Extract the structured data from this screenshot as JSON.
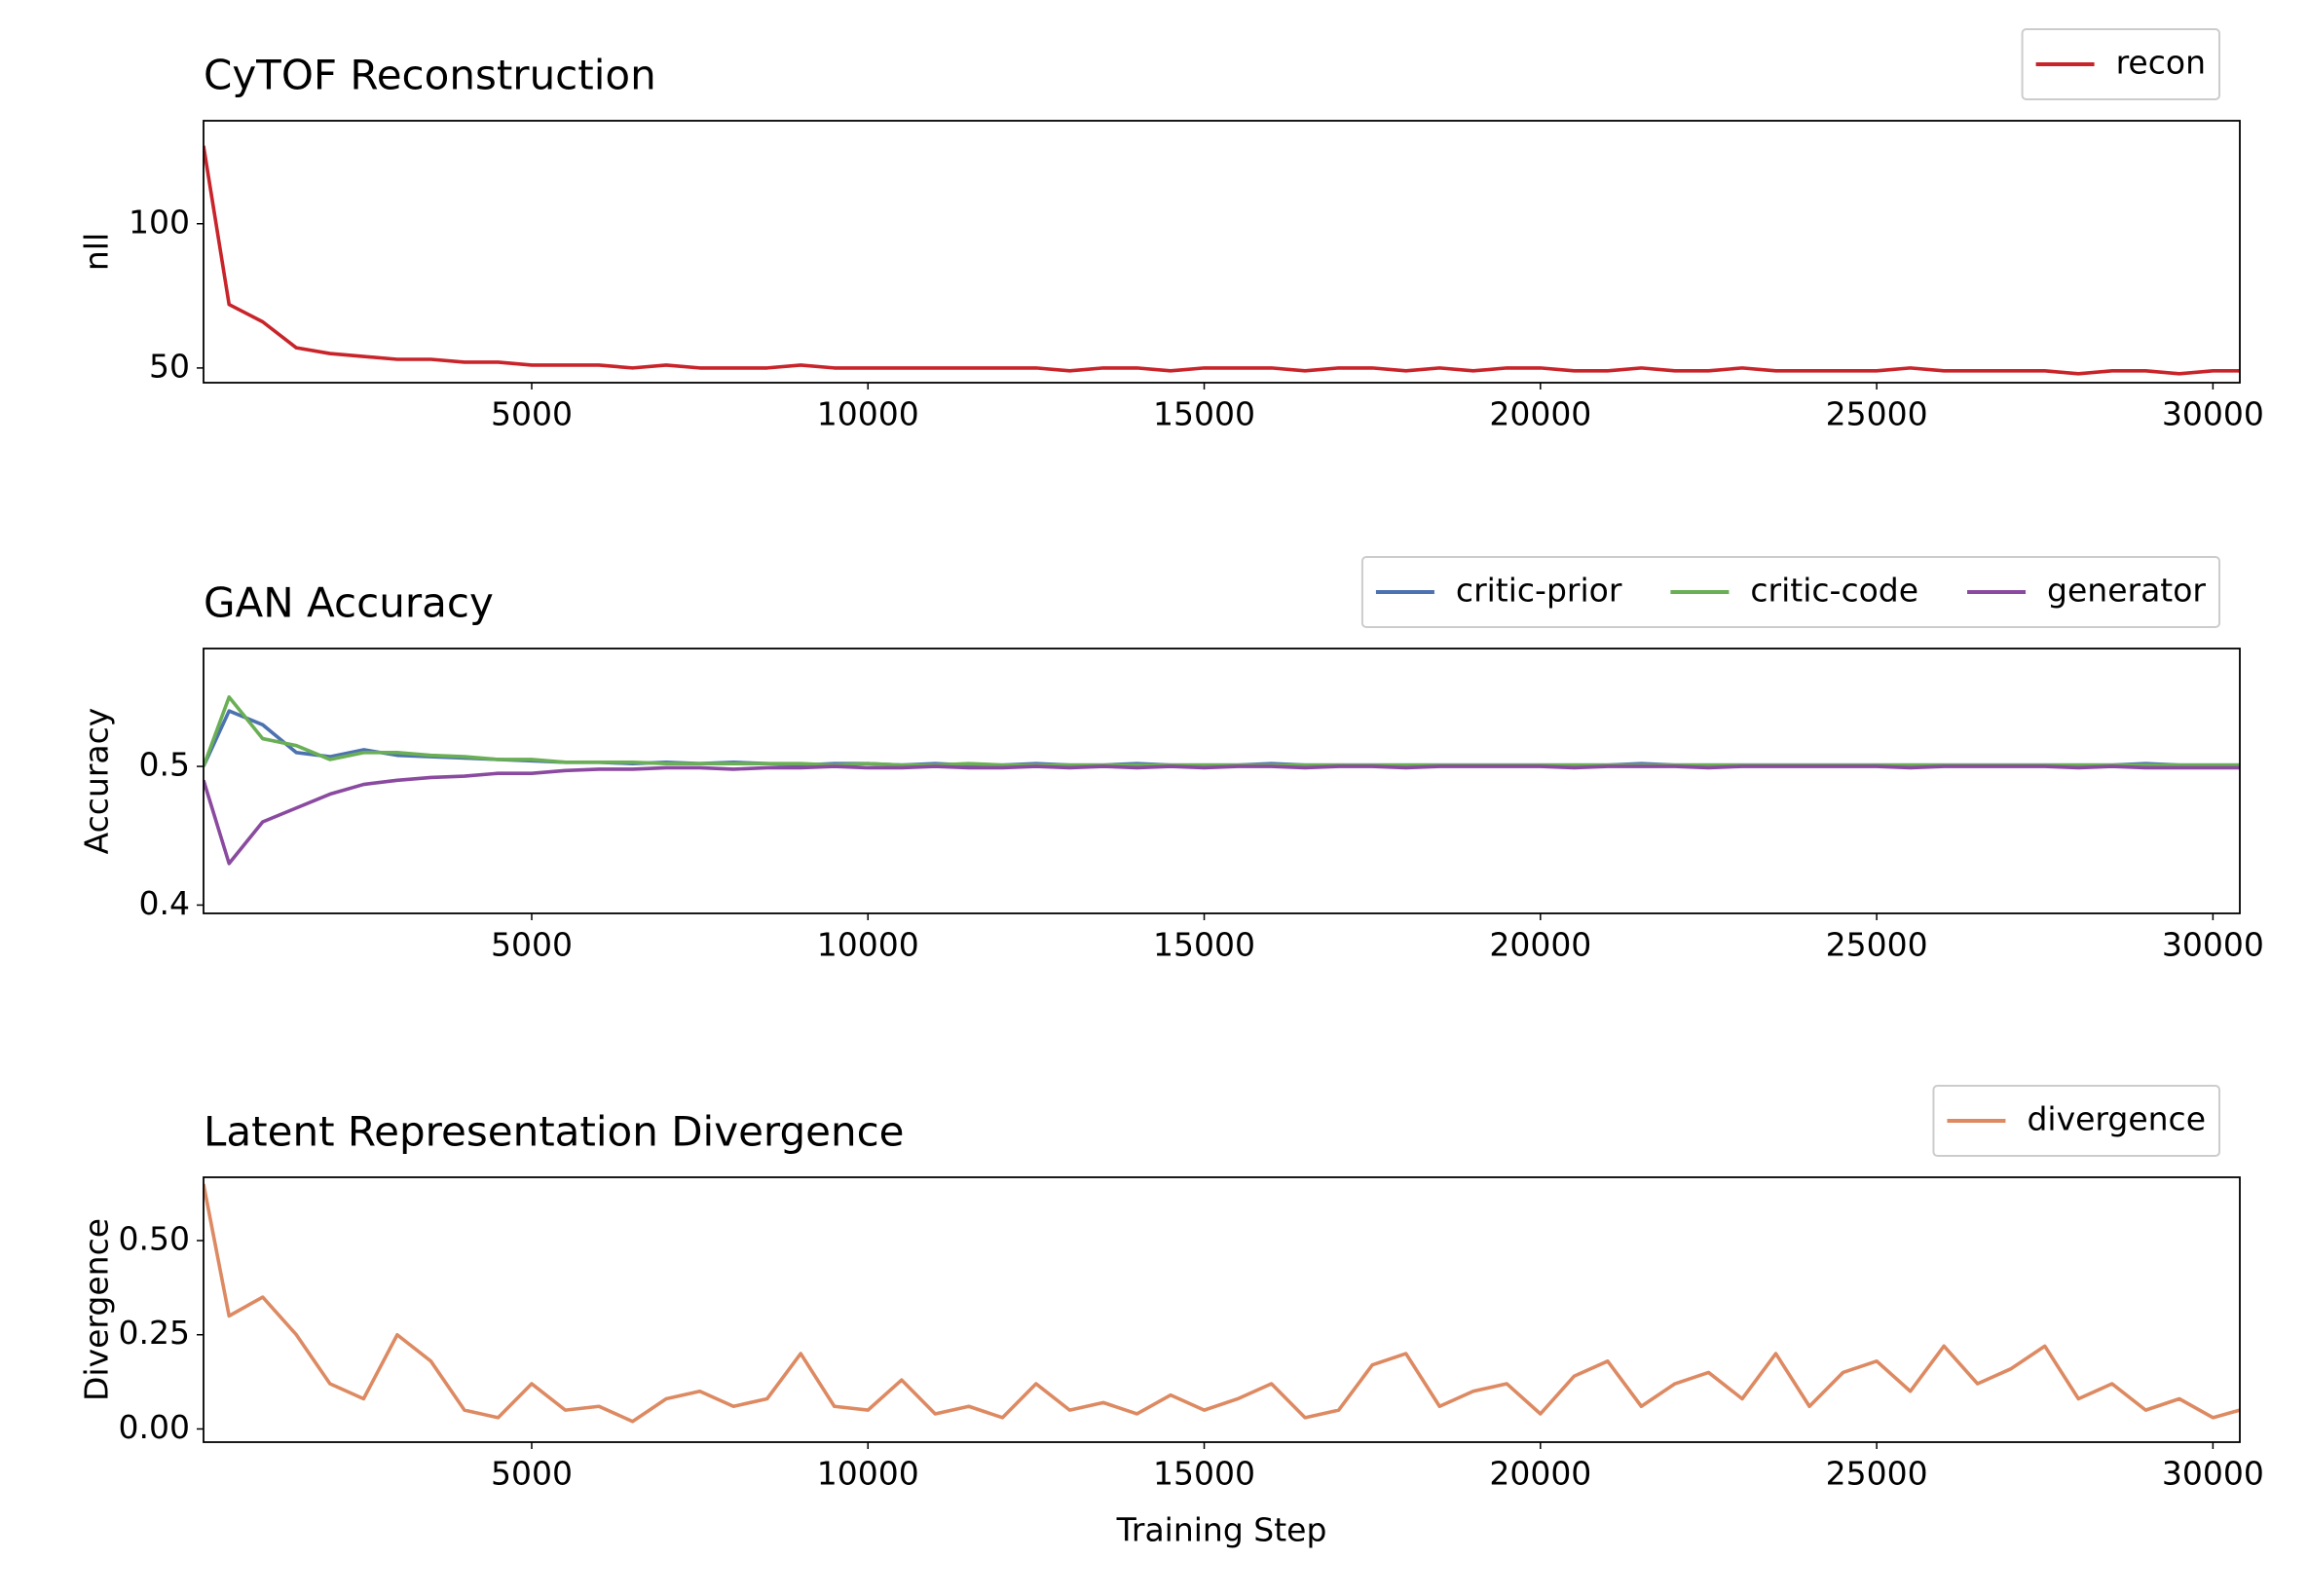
{
  "chart_data": [
    {
      "type": "line",
      "title": "CyTOF Reconstruction",
      "ylabel": "nll",
      "legend": "upper right",
      "grid": false,
      "x": [
        120,
        500,
        1000,
        1500,
        2000,
        2500,
        3000,
        3500,
        4000,
        4500,
        5000,
        5500,
        6000,
        6500,
        7000,
        7500,
        8000,
        8500,
        9000,
        9500,
        10000,
        10500,
        11000,
        11500,
        12000,
        12500,
        13000,
        13500,
        14000,
        14500,
        15000,
        15500,
        16000,
        16500,
        17000,
        17500,
        18000,
        18500,
        19000,
        19500,
        20000,
        20500,
        21000,
        21500,
        22000,
        22500,
        23000,
        23500,
        24000,
        24500,
        25000,
        25500,
        26000,
        26500,
        27000,
        27500,
        28000,
        28500,
        29000,
        29500,
        30000,
        30400
      ],
      "series": [
        {
          "name": "recon",
          "color": "#c8242a",
          "values": [
            127,
            72,
            66,
            57,
            55,
            54,
            53,
            53,
            52,
            52,
            51,
            51,
            51,
            50,
            51,
            50,
            50,
            50,
            51,
            50,
            50,
            50,
            50,
            50,
            50,
            50,
            49,
            50,
            50,
            49,
            50,
            50,
            50,
            49,
            50,
            50,
            49,
            50,
            49,
            50,
            50,
            49,
            49,
            50,
            49,
            49,
            50,
            49,
            49,
            49,
            49,
            50,
            49,
            49,
            49,
            49,
            48,
            49,
            49,
            48,
            49,
            49
          ]
        }
      ],
      "xlim": [
        120,
        30400
      ],
      "xticks": [
        5000,
        10000,
        15000,
        20000,
        25000,
        30000
      ],
      "ylim": [
        44.9,
        135.7
      ],
      "yticks": [
        50,
        100
      ]
    },
    {
      "type": "line",
      "title": "GAN Accuracy",
      "ylabel": "Accuracy",
      "legend": "upper right",
      "grid": false,
      "x": [
        120,
        500,
        1000,
        1500,
        2000,
        2500,
        3000,
        3500,
        4000,
        4500,
        5000,
        5500,
        6000,
        6500,
        7000,
        7500,
        8000,
        8500,
        9000,
        9500,
        10000,
        10500,
        11000,
        11500,
        12000,
        12500,
        13000,
        13500,
        14000,
        14500,
        15000,
        15500,
        16000,
        16500,
        17000,
        17500,
        18000,
        18500,
        19000,
        19500,
        20000,
        20500,
        21000,
        21500,
        22000,
        22500,
        23000,
        23500,
        24000,
        24500,
        25000,
        25500,
        26000,
        26500,
        27000,
        27500,
        28000,
        28500,
        29000,
        29500,
        30000,
        30400
      ],
      "series": [
        {
          "name": "critic-prior",
          "color": "#4c72b0",
          "values": [
            0.5,
            0.54,
            0.53,
            0.51,
            0.507,
            0.512,
            0.508,
            0.507,
            0.506,
            0.505,
            0.504,
            0.503,
            0.503,
            0.502,
            0.503,
            0.502,
            0.503,
            0.502,
            0.501,
            0.502,
            0.502,
            0.501,
            0.502,
            0.501,
            0.501,
            0.502,
            0.501,
            0.501,
            0.502,
            0.501,
            0.501,
            0.501,
            0.502,
            0.501,
            0.501,
            0.501,
            0.501,
            0.501,
            0.501,
            0.501,
            0.501,
            0.501,
            0.501,
            0.502,
            0.501,
            0.501,
            0.501,
            0.501,
            0.501,
            0.501,
            0.501,
            0.501,
            0.501,
            0.501,
            0.501,
            0.501,
            0.501,
            0.501,
            0.502,
            0.501,
            0.501,
            0.501
          ]
        },
        {
          "name": "critic-code",
          "color": "#6aaf55",
          "values": [
            0.5,
            0.55,
            0.52,
            0.515,
            0.505,
            0.51,
            0.51,
            0.508,
            0.507,
            0.505,
            0.505,
            0.503,
            0.503,
            0.503,
            0.502,
            0.502,
            0.502,
            0.502,
            0.502,
            0.501,
            0.502,
            0.501,
            0.501,
            0.502,
            0.501,
            0.501,
            0.501,
            0.501,
            0.501,
            0.501,
            0.501,
            0.501,
            0.501,
            0.501,
            0.501,
            0.501,
            0.501,
            0.501,
            0.501,
            0.501,
            0.501,
            0.501,
            0.501,
            0.501,
            0.501,
            0.501,
            0.501,
            0.501,
            0.501,
            0.501,
            0.501,
            0.501,
            0.501,
            0.501,
            0.501,
            0.501,
            0.501,
            0.501,
            0.501,
            0.501,
            0.501,
            0.501
          ]
        },
        {
          "name": "generator",
          "color": "#8a4a9f",
          "values": [
            0.49,
            0.43,
            0.46,
            0.47,
            0.48,
            0.487,
            0.49,
            0.492,
            0.493,
            0.495,
            0.495,
            0.497,
            0.498,
            0.498,
            0.499,
            0.499,
            0.498,
            0.499,
            0.499,
            0.5,
            0.499,
            0.499,
            0.5,
            0.499,
            0.499,
            0.5,
            0.499,
            0.5,
            0.499,
            0.5,
            0.499,
            0.5,
            0.5,
            0.499,
            0.5,
            0.5,
            0.499,
            0.5,
            0.5,
            0.5,
            0.5,
            0.499,
            0.5,
            0.5,
            0.5,
            0.499,
            0.5,
            0.5,
            0.5,
            0.5,
            0.5,
            0.499,
            0.5,
            0.5,
            0.5,
            0.5,
            0.499,
            0.5,
            0.499,
            0.499,
            0.499,
            0.499
          ]
        }
      ],
      "xlim": [
        120,
        30400
      ],
      "xticks": [
        5000,
        10000,
        15000,
        20000,
        25000,
        30000
      ],
      "ylim": [
        0.394,
        0.585
      ],
      "yticks": [
        0.4,
        0.5
      ]
    },
    {
      "type": "line",
      "title": "Latent Representation Divergence",
      "ylabel": "Divergence",
      "xlabel": "Training Step",
      "legend": "upper right",
      "grid": false,
      "x": [
        120,
        500,
        1000,
        1500,
        2000,
        2500,
        3000,
        3500,
        4000,
        4500,
        5000,
        5500,
        6000,
        6500,
        7000,
        7500,
        8000,
        8500,
        9000,
        9500,
        10000,
        10500,
        11000,
        11500,
        12000,
        12500,
        13000,
        13500,
        14000,
        14500,
        15000,
        15500,
        16000,
        16500,
        17000,
        17500,
        18000,
        18500,
        19000,
        19500,
        20000,
        20500,
        21000,
        21500,
        22000,
        22500,
        23000,
        23500,
        24000,
        24500,
        25000,
        25500,
        26000,
        26500,
        27000,
        27500,
        28000,
        28500,
        29000,
        29500,
        30000,
        30400
      ],
      "series": [
        {
          "name": "divergence",
          "color": "#dd8a62",
          "values": [
            0.65,
            0.3,
            0.35,
            0.25,
            0.12,
            0.08,
            0.25,
            0.18,
            0.05,
            0.03,
            0.12,
            0.05,
            0.06,
            0.02,
            0.08,
            0.1,
            0.06,
            0.08,
            0.2,
            0.06,
            0.05,
            0.13,
            0.04,
            0.06,
            0.03,
            0.12,
            0.05,
            0.07,
            0.04,
            0.09,
            0.05,
            0.08,
            0.12,
            0.03,
            0.05,
            0.17,
            0.2,
            0.06,
            0.1,
            0.12,
            0.04,
            0.14,
            0.18,
            0.06,
            0.12,
            0.15,
            0.08,
            0.2,
            0.06,
            0.15,
            0.18,
            0.1,
            0.22,
            0.12,
            0.16,
            0.22,
            0.08,
            0.12,
            0.05,
            0.08,
            0.03,
            0.05
          ]
        }
      ],
      "xlim": [
        120,
        30400
      ],
      "xticks": [
        5000,
        10000,
        15000,
        20000,
        25000,
        30000
      ],
      "ylim": [
        -0.035,
        0.668
      ],
      "yticks": [
        {
          "value": 0,
          "label": "0.00"
        },
        {
          "value": 0.25,
          "label": "0.25"
        },
        {
          "value": 0.5,
          "label": "0.50"
        }
      ]
    }
  ]
}
